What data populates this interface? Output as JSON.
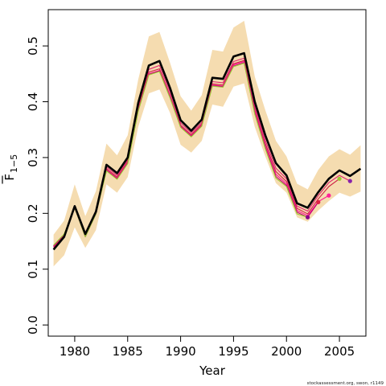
{
  "chart_data": {
    "type": "line",
    "xlabel": "Year",
    "ylabel": "F",
    "ylabel_sub": "1−5",
    "xlim": [
      1977.5,
      2007.5
    ],
    "ylim": [
      -0.02,
      0.565
    ],
    "x_ticks": [
      1980,
      1985,
      1990,
      1995,
      2000,
      2005
    ],
    "x_tick_labels": [
      "1980",
      "1985",
      "1990",
      "1995",
      "2000",
      "2005"
    ],
    "y_ticks": [
      0.0,
      0.1,
      0.2,
      0.3,
      0.4,
      0.5
    ],
    "y_tick_labels": [
      "0.0",
      "0.1",
      "0.2",
      "0.3",
      "0.4",
      "0.5"
    ],
    "grid": false,
    "colors": {
      "band": "#f5dcb0",
      "main": "#000000",
      "retro_1": "#e0246e",
      "retro_2": "#cc2244",
      "retro_3": "#ff1493",
      "retro_4": "#c00070",
      "retro_5": "#9acd32",
      "retro_6": "#aa1188",
      "terminal_points": [
        "#880088",
        "#dd2244",
        "#ff2299",
        "#99cc33",
        "#8822aa"
      ]
    },
    "band": {
      "x": [
        1978,
        1979,
        1980,
        1981,
        1982,
        1983,
        1984,
        1985,
        1986,
        1987,
        1988,
        1989,
        1990,
        1991,
        1992,
        1993,
        1994,
        1995,
        1996,
        1997,
        1998,
        1999,
        2000,
        2001,
        2002,
        2003,
        2004,
        2005,
        2006,
        2007
      ],
      "lower": [
        0.105,
        0.125,
        0.175,
        0.138,
        0.17,
        0.252,
        0.237,
        0.265,
        0.355,
        0.415,
        0.422,
        0.38,
        0.323,
        0.309,
        0.33,
        0.395,
        0.391,
        0.427,
        0.433,
        0.355,
        0.302,
        0.254,
        0.237,
        0.193,
        0.185,
        0.205,
        0.222,
        0.237,
        0.23,
        0.239
      ],
      "upper": [
        0.162,
        0.187,
        0.252,
        0.195,
        0.24,
        0.325,
        0.304,
        0.34,
        0.44,
        0.517,
        0.525,
        0.47,
        0.41,
        0.384,
        0.412,
        0.493,
        0.49,
        0.533,
        0.545,
        0.445,
        0.385,
        0.33,
        0.302,
        0.253,
        0.243,
        0.278,
        0.302,
        0.315,
        0.305,
        0.322
      ]
    },
    "series": [
      {
        "x": [
          1978,
          1979,
          1980,
          1981,
          1982,
          1983,
          1984,
          1985,
          1986,
          1987,
          1988,
          1989,
          1990,
          1991,
          1992,
          1993,
          1994,
          1995,
          1996,
          1997,
          1998,
          1999,
          2000,
          2001,
          2002,
          2003,
          2004,
          2005,
          2006,
          2007
        ],
        "values": [
          0.135,
          0.158,
          0.213,
          0.163,
          0.203,
          0.287,
          0.272,
          0.3,
          0.398,
          0.465,
          0.473,
          0.425,
          0.367,
          0.348,
          0.368,
          0.443,
          0.441,
          0.481,
          0.487,
          0.4,
          0.34,
          0.29,
          0.268,
          0.218,
          0.21,
          0.238,
          0.262,
          0.277,
          0.267,
          0.28
        ]
      },
      {
        "x": [
          1978,
          1979,
          1980,
          1981,
          1982,
          1983,
          1984,
          1985,
          1986,
          1987,
          1988,
          1989,
          1990,
          1991,
          1992,
          1993,
          1994,
          1995,
          1996,
          1997,
          1998,
          1999,
          2000,
          2001,
          2002,
          2003,
          2004,
          2005,
          2006
        ],
        "values": [
          0.138,
          0.16,
          0.212,
          0.161,
          0.202,
          0.283,
          0.268,
          0.296,
          0.393,
          0.458,
          0.465,
          0.418,
          0.362,
          0.344,
          0.363,
          0.436,
          0.434,
          0.472,
          0.478,
          0.392,
          0.331,
          0.281,
          0.262,
          0.213,
          0.204,
          0.232,
          0.255,
          0.268,
          0.258
        ]
      },
      {
        "x": [
          1978,
          1979,
          1980,
          1981,
          1982,
          1983,
          1984,
          1985,
          1986,
          1987,
          1988,
          1989,
          1990,
          1991,
          1992,
          1993,
          1994,
          1995,
          1996,
          1997,
          1998,
          1999,
          2000,
          2001,
          2002,
          2003,
          2004,
          2005
        ],
        "values": [
          0.14,
          0.161,
          0.211,
          0.16,
          0.201,
          0.28,
          0.265,
          0.293,
          0.388,
          0.453,
          0.459,
          0.412,
          0.358,
          0.341,
          0.36,
          0.432,
          0.43,
          0.468,
          0.474,
          0.386,
          0.325,
          0.275,
          0.257,
          0.209,
          0.199,
          0.226,
          0.248,
          0.262
        ]
      },
      {
        "x": [
          1978,
          1979,
          1980,
          1981,
          1982,
          1983,
          1984,
          1985,
          1986,
          1987,
          1988,
          1989,
          1990,
          1991,
          1992,
          1993,
          1994,
          1995,
          1996,
          1997,
          1998,
          1999,
          2000,
          2001,
          2002,
          2003,
          2004
        ],
        "values": [
          0.141,
          0.162,
          0.211,
          0.159,
          0.2,
          0.278,
          0.263,
          0.291,
          0.385,
          0.45,
          0.456,
          0.41,
          0.356,
          0.339,
          0.358,
          0.43,
          0.428,
          0.466,
          0.472,
          0.383,
          0.321,
          0.27,
          0.253,
          0.205,
          0.196,
          0.221,
          0.232
        ]
      },
      {
        "x": [
          1978,
          1979,
          1980,
          1981,
          1982,
          1983,
          1984,
          1985,
          1986,
          1987,
          1988,
          1989,
          1990,
          1991,
          1992,
          1993,
          1994,
          1995,
          1996,
          1997,
          1998,
          1999,
          2000,
          2001,
          2002,
          2003
        ],
        "values": [
          0.142,
          0.162,
          0.21,
          0.158,
          0.199,
          0.277,
          0.262,
          0.29,
          0.384,
          0.449,
          0.455,
          0.408,
          0.355,
          0.338,
          0.357,
          0.429,
          0.427,
          0.464,
          0.47,
          0.38,
          0.318,
          0.266,
          0.25,
          0.202,
          0.193,
          0.22
        ]
      },
      {
        "x": [
          1978,
          1979,
          1980,
          1981,
          1982,
          1983,
          1984,
          1985,
          1986,
          1987,
          1988,
          1989,
          1990,
          1991,
          1992,
          1993,
          1994,
          1995,
          1996,
          1997,
          1998,
          1999,
          2000,
          2001,
          2002
        ],
        "values": [
          0.143,
          0.163,
          0.21,
          0.158,
          0.199,
          0.276,
          0.261,
          0.289,
          0.383,
          0.448,
          0.454,
          0.407,
          0.354,
          0.337,
          0.356,
          0.428,
          0.426,
          0.463,
          0.469,
          0.378,
          0.316,
          0.263,
          0.248,
          0.199,
          0.193
        ]
      }
    ]
  },
  "footer_text": "stockassessment.org, swon, r1149"
}
